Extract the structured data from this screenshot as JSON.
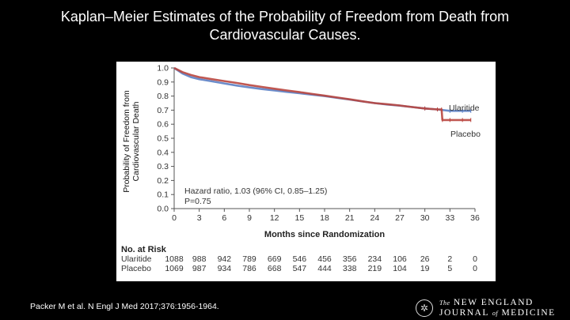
{
  "slide": {
    "title_line1": "Kaplan–Meier Estimates of the Probability of Freedom from Death from",
    "title_line2": "Cardiovascular Causes.",
    "citation": "Packer M et al. N Engl J Med 2017;376:1956-1964.",
    "journal": {
      "the": "The",
      "new_england": "NEW ENGLAND",
      "journal": "JOURNAL",
      "of": "of",
      "medicine": "MEDICINE"
    }
  },
  "chart_data": {
    "type": "line",
    "title": "",
    "xlabel": "Months since Randomization",
    "ylabel_line1": "Probability of Freedom from",
    "ylabel_line2": "Cardiovascular Death",
    "xlim": [
      0,
      36
    ],
    "ylim": [
      0,
      1.0
    ],
    "x_ticks": [
      0,
      3,
      6,
      9,
      12,
      15,
      18,
      21,
      24,
      27,
      30,
      33,
      36
    ],
    "y_ticks": [
      0.0,
      0.1,
      0.2,
      0.3,
      0.4,
      0.5,
      0.6,
      0.7,
      0.8,
      0.9,
      1.0
    ],
    "series": [
      {
        "name": "Ularitide",
        "color": "#5b7fc4",
        "x": [
          0,
          1,
          2,
          3,
          4.5,
          6,
          7.5,
          9,
          10.5,
          12,
          13.5,
          15,
          16.5,
          18,
          19.5,
          21,
          22.5,
          24,
          25.5,
          27,
          28.5,
          30,
          31.5,
          33,
          34.5,
          35.5
        ],
        "y": [
          1.0,
          0.96,
          0.935,
          0.92,
          0.905,
          0.89,
          0.875,
          0.862,
          0.85,
          0.84,
          0.83,
          0.82,
          0.81,
          0.8,
          0.787,
          0.775,
          0.762,
          0.75,
          0.74,
          0.732,
          0.722,
          0.712,
          0.705,
          0.695,
          0.695,
          0.695
        ]
      },
      {
        "name": "Placebo",
        "color": "#b9463f",
        "x": [
          0,
          1,
          2,
          3,
          4.5,
          6,
          7.5,
          9,
          10.5,
          12,
          13.5,
          15,
          16.5,
          18,
          19.5,
          21,
          22.5,
          24,
          25.5,
          27,
          28.5,
          30,
          31.5,
          32,
          32.1,
          33,
          34.5,
          35.5
        ],
        "y": [
          1.0,
          0.97,
          0.95,
          0.935,
          0.92,
          0.907,
          0.893,
          0.878,
          0.865,
          0.852,
          0.84,
          0.828,
          0.815,
          0.803,
          0.79,
          0.777,
          0.763,
          0.75,
          0.742,
          0.733,
          0.722,
          0.712,
          0.705,
          0.705,
          0.63,
          0.63,
          0.63,
          0.63
        ]
      }
    ],
    "legend_labels": [
      "Ularitide",
      "Placebo"
    ],
    "annotation_line1": "Hazard ratio, 1.03 (96% CI, 0.85–1.25)",
    "annotation_line2": "P=0.75",
    "risk_table": {
      "title": "No. at Risk",
      "rows": [
        {
          "label": "Ularitide",
          "values": [
            "1088",
            "988",
            "942",
            "789",
            "669",
            "546",
            "456",
            "356",
            "234",
            "106",
            "26",
            "2",
            "0"
          ]
        },
        {
          "label": "Placebo",
          "values": [
            "1069",
            "987",
            "934",
            "786",
            "668",
            "547",
            "444",
            "338",
            "219",
            "104",
            "19",
            "5",
            "0"
          ]
        }
      ]
    }
  }
}
